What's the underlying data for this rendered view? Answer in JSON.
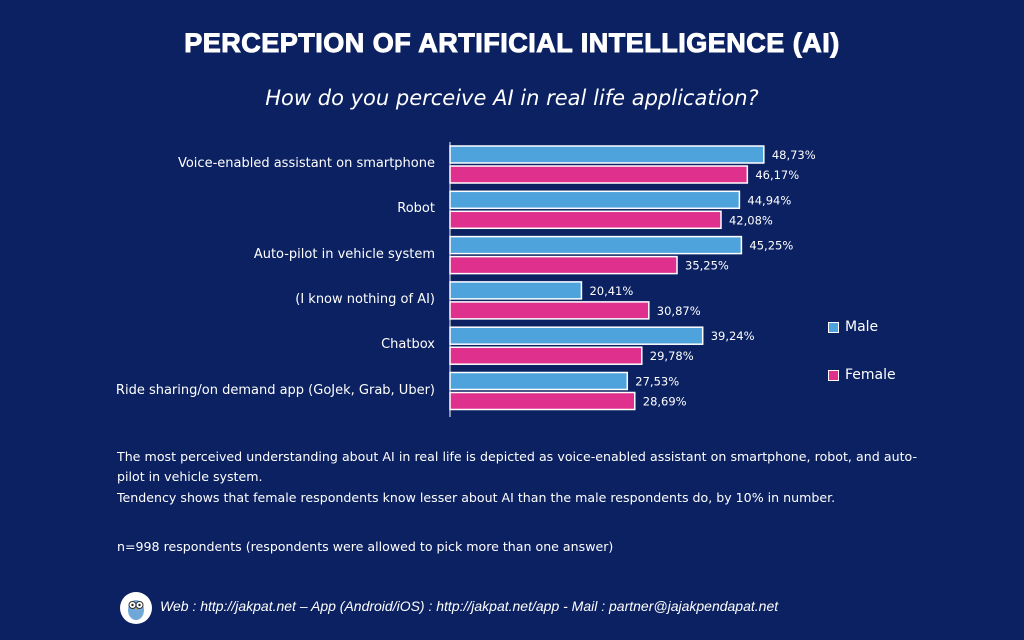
{
  "title": "PERCEPTION OF ARTIFICIAL INTELLIGENCE (AI)",
  "chart_data": {
    "type": "bar",
    "orientation": "horizontal",
    "title": "How do you perceive AI in real life application?",
    "categories": [
      "Voice-enabled assistant on smartphone",
      "Robot",
      "Auto-pilot in vehicle system",
      "(I know nothing of AI)",
      "Chatbox",
      "Ride sharing/on demand app (GoJek, Grab, Uber)"
    ],
    "series": [
      {
        "name": "Male",
        "color": "#4fa3dc",
        "values": [
          48.73,
          44.94,
          45.25,
          20.41,
          39.24,
          27.53
        ],
        "labels": [
          "48,73%",
          "44,94%",
          "45,25%",
          "20,41%",
          "39,24%",
          "27,53%"
        ]
      },
      {
        "name": "Female",
        "color": "#e0308e",
        "values": [
          46.17,
          42.08,
          35.25,
          30.87,
          29.78,
          28.69
        ],
        "labels": [
          "46,17%",
          "42,08%",
          "35,25%",
          "30,87%",
          "29,78%",
          "28,69%"
        ]
      }
    ],
    "legend": "right",
    "grid": false
  },
  "notes": [
    "The most perceived understanding about AI in real life is depicted as voice-enabled assistant on smartphone, robot, and auto-pilot in vehicle system.",
    "Tendency shows that female respondents know lesser about AI than the male respondents do, by 10% in number.",
    "n=998 respondents (respondents were allowed to pick more than one answer)"
  ],
  "footer": "Web : http://jakpat.net – App (Android/iOS) : http://jakpat.net/app  - Mail : partner@jajakpendapat.net",
  "logo": "jakpat owl"
}
